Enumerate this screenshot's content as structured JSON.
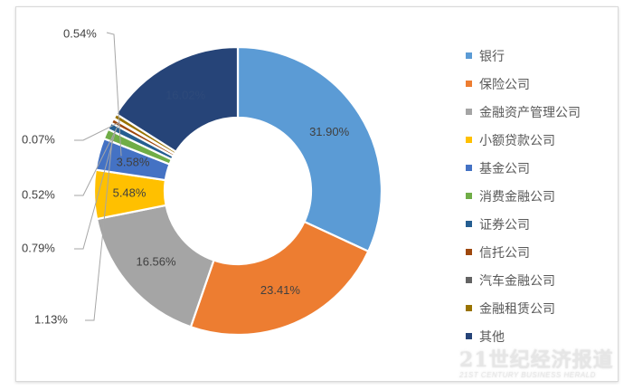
{
  "chart_data": {
    "type": "pie",
    "subtype": "donut",
    "title": "",
    "categories": [
      "银行",
      "保险公司",
      "金融资产管理公司",
      "小额贷款公司",
      "基金公司",
      "消费金融公司",
      "证券公司",
      "信托公司",
      "汽车金融公司",
      "金融租赁公司",
      "其他"
    ],
    "values": [
      31.9,
      23.41,
      16.56,
      5.48,
      3.58,
      1.13,
      0.79,
      0.52,
      0.07,
      0.54,
      16.02
    ],
    "labels": [
      "31.90%",
      "23.41%",
      "16.56%",
      "5.48%",
      "3.58%",
      "1.13%",
      "0.79%",
      "0.52%",
      "0.07%",
      "0.54%",
      "16.02%"
    ],
    "colors": [
      "#5b9bd5",
      "#ed7d31",
      "#a5a5a5",
      "#ffc000",
      "#4472c4",
      "#70ad47",
      "#255e91",
      "#9e480e",
      "#636363",
      "#997300",
      "#264478"
    ],
    "unit": "%",
    "legend_position": "right"
  },
  "legend": {
    "items": [
      {
        "label": "银行",
        "color": "#5b9bd5"
      },
      {
        "label": "保险公司",
        "color": "#ed7d31"
      },
      {
        "label": "金融资产管理公司",
        "color": "#a5a5a5"
      },
      {
        "label": "小额贷款公司",
        "color": "#ffc000"
      },
      {
        "label": "基金公司",
        "color": "#4472c4"
      },
      {
        "label": "消费金融公司",
        "color": "#70ad47"
      },
      {
        "label": "证券公司",
        "color": "#255e91"
      },
      {
        "label": "信托公司",
        "color": "#9e480e"
      },
      {
        "label": "汽车金融公司",
        "color": "#636363"
      },
      {
        "label": "金融租赁公司",
        "color": "#997300"
      },
      {
        "label": "其他",
        "color": "#264478"
      }
    ]
  },
  "watermark": {
    "cn": "21世纪经济报道",
    "en": "21ST CENTURY BUSINESS HERALD"
  }
}
